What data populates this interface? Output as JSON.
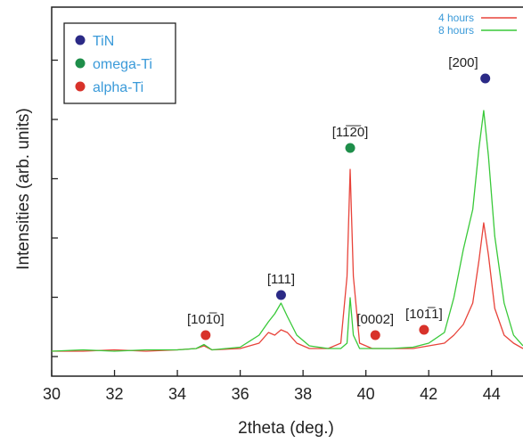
{
  "chart_data": {
    "type": "line",
    "title": "",
    "xlabel": "2theta (deg.)",
    "ylabel": "Intensities (arb. units)",
    "xlim": [
      30,
      45
    ],
    "ylim": [
      0,
      100
    ],
    "x_ticks": [
      30,
      32,
      34,
      36,
      38,
      40,
      42,
      44
    ],
    "x_tick_labels": [
      "30",
      "32",
      "34",
      "36",
      "38",
      "40",
      "42",
      "44"
    ],
    "y_tick_count": 6,
    "grid": false,
    "series": [
      {
        "name": "4 hours",
        "color": "#e8433a",
        "x": [
          30,
          31,
          32,
          33,
          34,
          34.6,
          34.85,
          35.1,
          36,
          36.6,
          36.9,
          37.1,
          37.3,
          37.5,
          37.8,
          38.2,
          38.8,
          39.2,
          39.4,
          39.5,
          39.6,
          39.8,
          40.2,
          40.8,
          41.5,
          42,
          42.5,
          42.8,
          43.1,
          43.4,
          43.6,
          43.75,
          43.9,
          44.1,
          44.4,
          44.7,
          45
        ],
        "y": [
          2,
          2,
          2.5,
          2,
          2.5,
          3,
          4,
          2.5,
          3,
          5,
          9,
          8,
          10,
          9,
          5,
          3,
          3,
          5,
          30,
          70,
          30,
          5,
          3,
          3,
          3,
          4,
          5,
          8,
          12,
          20,
          36,
          50,
          38,
          18,
          8,
          5,
          3
        ]
      },
      {
        "name": "8 hours",
        "color": "#39c939",
        "x": [
          30,
          31,
          32,
          33,
          34,
          34.6,
          34.85,
          35.1,
          36,
          36.6,
          36.9,
          37.1,
          37.3,
          37.5,
          37.8,
          38.2,
          38.8,
          39.2,
          39.4,
          39.5,
          39.6,
          39.8,
          40.2,
          40.8,
          41.5,
          42,
          42.5,
          42.8,
          43.1,
          43.4,
          43.6,
          43.75,
          43.9,
          44.1,
          44.4,
          44.7,
          45
        ],
        "y": [
          2,
          2.5,
          2,
          2.5,
          2.5,
          3,
          4.5,
          2.5,
          3.5,
          8,
          13,
          16,
          20,
          15,
          8,
          4,
          3,
          3,
          5,
          22,
          8,
          3,
          3,
          3,
          3.5,
          5,
          9,
          22,
          40,
          55,
          78,
          92,
          75,
          45,
          20,
          8,
          4
        ]
      }
    ],
    "markers": [
      {
        "phase": "TiN",
        "x": 37.3,
        "y": 23,
        "label": "[111]"
      },
      {
        "phase": "omega-Ti",
        "x": 39.5,
        "y": 78,
        "label": "[11̅2̅0]"
      },
      {
        "phase": "alpha-Ti",
        "x": 34.9,
        "y": 8,
        "label": "[101̅0]"
      },
      {
        "phase": "alpha-Ti",
        "x": 40.3,
        "y": 8,
        "label": "[0002]"
      },
      {
        "phase": "alpha-Ti",
        "x": 41.85,
        "y": 10,
        "label": "[101̅1]"
      },
      {
        "phase": "TiN",
        "x": 43.8,
        "y": 104,
        "label": "[200]"
      }
    ],
    "phase_legend": [
      {
        "name": "TiN",
        "color": "#2b2a86"
      },
      {
        "name": "omega-Ti",
        "color": "#1e8e4a"
      },
      {
        "name": "alpha-Ti",
        "color": "#d8322a"
      }
    ],
    "legend_text_color": "#3a9ad9",
    "line_legend_position": "top-right",
    "phase_legend_position": "top-left"
  }
}
